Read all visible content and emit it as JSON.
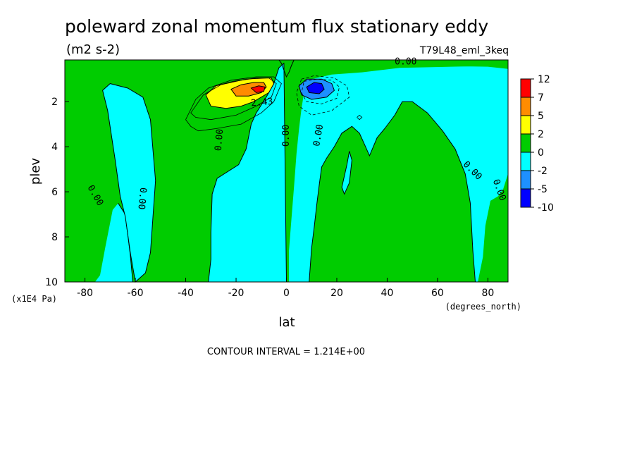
{
  "chart_data": {
    "type": "heatmap",
    "title": "poleward zonal momentum flux stationary eddy",
    "units": "(m2 s-2)",
    "run_name": "T79L48_eml_3keq",
    "xlabel": "lat",
    "xunits": "(degrees_north)",
    "ylabel": "plev",
    "yunits": "(x1E4 Pa)",
    "xlim": [
      -88,
      88
    ],
    "ylim": [
      10,
      0.15
    ],
    "x_ticks": [
      -80,
      -60,
      -40,
      -20,
      0,
      20,
      40,
      60,
      80
    ],
    "x_tick_labels": [
      "-80",
      "-60",
      "-40",
      "-20",
      "0",
      "20",
      "40",
      "60",
      "80"
    ],
    "y_ticks": [
      2,
      4,
      6,
      8,
      10
    ],
    "y_tick_labels": [
      "2",
      "4",
      "6",
      "8",
      "10"
    ],
    "contour_interval_label": "CONTOUR INTERVAL = 1.214E+00",
    "contour_labels": [
      {
        "text": "0.00",
        "x": -79,
        "y": 5.8,
        "rot": 60
      },
      {
        "text": "0.00",
        "x": -58,
        "y": 5.8,
        "rot": 95
      },
      {
        "text": "0.00",
        "x": -26,
        "y": 4.2,
        "rot": -85
      },
      {
        "text": "0.00",
        "x": 1,
        "y": 4.0,
        "rot": -90
      },
      {
        "text": "0.00",
        "x": 13,
        "y": 4.0,
        "rot": -80
      },
      {
        "text": "0.00",
        "x": 70,
        "y": 4.8,
        "rot": 45
      },
      {
        "text": "0.00",
        "x": 82,
        "y": 5.5,
        "rot": 70
      },
      {
        "text": "0.00",
        "x": 43,
        "y": 0.35,
        "rot": 0
      },
      {
        "text": "2.43",
        "x": -14,
        "y": 2.2,
        "rot": -5
      }
    ],
    "colorbar": {
      "levels": [
        "12",
        "7",
        "5",
        "2",
        "0",
        "-2",
        "-5",
        "-10"
      ],
      "colors": [
        "#ff0000",
        "#ff8c00",
        "#ffff00",
        "#00cc00",
        "#00ffff",
        "#1e90ff",
        "#0000ff"
      ]
    },
    "fill_colors": {
      "positive_low": "#00cc00",
      "negative_low": "#00ffff",
      "positive_2": "#ffff00",
      "positive_5": "#ff8c00",
      "positive_7": "#ff0000",
      "negative_2": "#1e90ff",
      "negative_5": "#0000ff"
    }
  }
}
